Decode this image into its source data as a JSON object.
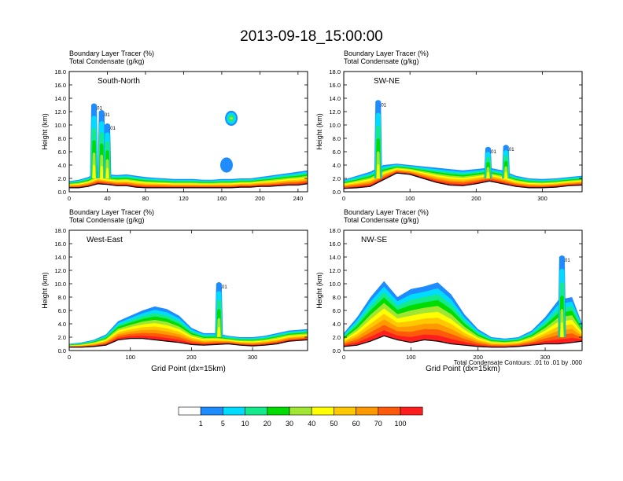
{
  "figure": {
    "title": "2013-09-18_15:00:00",
    "contour_note": "Total Condensate Contours: .01 to .01 by .000",
    "contour_label": ".01"
  },
  "colorbar": {
    "labels": [
      "1",
      "5",
      "10",
      "20",
      "30",
      "40",
      "50",
      "60",
      "70",
      "100"
    ],
    "colors": [
      "#ffffff",
      "#1e8cff",
      "#00dcff",
      "#14ea8c",
      "#00dc00",
      "#a0e632",
      "#ffff00",
      "#ffc800",
      "#ff9900",
      "#ff5a0a",
      "#ff1e1e"
    ]
  },
  "chart_data": [
    {
      "type": "heatmap",
      "panel_label": "South-North",
      "header_line1": "Boundary Layer Tracer   (%)",
      "header_line2": "Total Condensate   (g/kg)",
      "ylabel": "Height (km)",
      "xlabel": "",
      "xlim": [
        0,
        250
      ],
      "ylim": [
        0,
        18
      ],
      "xticks": [
        "0",
        "40",
        "80",
        "120",
        "160",
        "200",
        "240"
      ],
      "yticks": [
        "0.0",
        "2.0",
        "4.0",
        "6.0",
        "8.0",
        "10.0",
        "12.0",
        "14.0",
        "16.0",
        "18.0"
      ],
      "x": [
        0,
        10,
        20,
        30,
        40,
        50,
        60,
        70,
        80,
        90,
        100,
        110,
        120,
        130,
        140,
        150,
        160,
        170,
        180,
        190,
        200,
        210,
        220,
        230,
        240,
        250
      ],
      "terrain_km": [
        0.6,
        0.6,
        0.8,
        1.2,
        1.1,
        0.9,
        0.9,
        0.7,
        0.6,
        0.6,
        0.6,
        0.6,
        0.6,
        0.6,
        0.6,
        0.6,
        0.6,
        0.6,
        0.7,
        0.7,
        0.8,
        0.8,
        0.9,
        1.0,
        1.0,
        1.2
      ],
      "layer_top_km": [
        1.6,
        1.8,
        2.2,
        3.0,
        2.6,
        2.5,
        2.6,
        2.4,
        2.2,
        2.1,
        2.0,
        1.9,
        1.9,
        1.9,
        1.8,
        1.8,
        1.9,
        1.9,
        2.0,
        2.0,
        2.2,
        2.4,
        2.6,
        2.8,
        3.0,
        3.2
      ],
      "plumes": [
        {
          "x": 26,
          "top_km": 13.0
        },
        {
          "x": 34,
          "top_km": 12.0
        },
        {
          "x": 40,
          "top_km": 10.0
        }
      ],
      "cloud_patches": [
        {
          "x": 170,
          "y_km": 11.0,
          "top_value": 30
        },
        {
          "x": 165,
          "y_km": 4.0,
          "top_value": 1
        }
      ]
    },
    {
      "type": "heatmap",
      "panel_label": "SW-NE",
      "header_line1": "Boundary Layer Tracer   (%)",
      "header_line2": "Total Condensate   (g/kg)",
      "ylabel": "Height (km)",
      "xlabel": "",
      "xlim": [
        0,
        360
      ],
      "ylim": [
        0,
        18
      ],
      "xticks": [
        "0",
        "100",
        "200",
        "300"
      ],
      "yticks": [
        "0.0",
        "2.0",
        "4.0",
        "6.0",
        "8.0",
        "10.0",
        "12.0",
        "14.0",
        "16.0",
        "18.0"
      ],
      "x": [
        0,
        20,
        40,
        60,
        80,
        100,
        120,
        140,
        160,
        180,
        200,
        220,
        240,
        260,
        280,
        300,
        320,
        340,
        360
      ],
      "terrain_km": [
        0.5,
        0.6,
        0.8,
        1.8,
        2.8,
        2.6,
        2.0,
        1.4,
        1.0,
        0.9,
        1.2,
        1.6,
        1.2,
        0.8,
        0.6,
        0.6,
        0.7,
        0.9,
        1.0
      ],
      "layer_top_km": [
        1.8,
        2.4,
        3.0,
        4.0,
        4.2,
        4.0,
        3.8,
        3.6,
        3.4,
        3.2,
        3.4,
        3.6,
        3.2,
        2.4,
        2.0,
        1.9,
        2.0,
        2.2,
        2.4
      ],
      "plumes": [
        {
          "x": 52,
          "top_km": 13.5
        },
        {
          "x": 218,
          "top_km": 6.5
        },
        {
          "x": 245,
          "top_km": 6.8
        }
      ],
      "cloud_patches": []
    },
    {
      "type": "heatmap",
      "panel_label": "West-East",
      "header_line1": "Boundary Layer Tracer   (%)",
      "header_line2": "Total Condensate   (g/kg)",
      "ylabel": "Height (km)",
      "xlabel": "Grid Point (dx=15km)",
      "xlim": [
        0,
        390
      ],
      "ylim": [
        0,
        18
      ],
      "xticks": [
        "0",
        "100",
        "200",
        "300"
      ],
      "yticks": [
        "0.0",
        "2.0",
        "4.0",
        "6.0",
        "8.0",
        "10.0",
        "12.0",
        "14.0",
        "16.0",
        "18.0"
      ],
      "x": [
        0,
        20,
        40,
        60,
        80,
        100,
        120,
        140,
        160,
        180,
        200,
        220,
        240,
        260,
        280,
        300,
        320,
        340,
        360,
        390
      ],
      "terrain_km": [
        0.5,
        0.5,
        0.6,
        0.8,
        1.6,
        1.8,
        1.8,
        1.6,
        1.4,
        1.2,
        0.9,
        0.8,
        0.9,
        1.0,
        0.8,
        0.7,
        0.8,
        1.0,
        1.4,
        1.6
      ],
      "layer_top_km": [
        1.0,
        1.2,
        1.6,
        2.4,
        4.4,
        5.2,
        6.0,
        6.6,
        6.2,
        5.2,
        3.4,
        2.6,
        2.6,
        2.2,
        2.0,
        2.0,
        2.2,
        2.6,
        3.0,
        3.2
      ],
      "plumes": [
        {
          "x": 245,
          "top_km": 10.0
        }
      ],
      "cloud_patches": []
    },
    {
      "type": "heatmap",
      "panel_label": "NW-SE",
      "header_line1": "Boundary Layer Tracer   (%)",
      "header_line2": "Total Condensate   (g/kg)",
      "ylabel": "Height (km)",
      "xlabel": "Grid Point (dx=15km)",
      "xlim": [
        0,
        355
      ],
      "ylim": [
        0,
        18
      ],
      "xticks": [
        "0",
        "100",
        "200",
        "300"
      ],
      "yticks": [
        "0.0",
        "2.0",
        "4.0",
        "6.0",
        "8.0",
        "10.0",
        "12.0",
        "14.0",
        "16.0",
        "18.0"
      ],
      "x": [
        0,
        20,
        40,
        60,
        80,
        100,
        120,
        140,
        160,
        180,
        200,
        220,
        240,
        260,
        280,
        300,
        320,
        340,
        355
      ],
      "terrain_km": [
        0.6,
        0.8,
        1.4,
        2.2,
        1.6,
        1.2,
        1.6,
        1.4,
        1.0,
        0.8,
        0.6,
        0.5,
        0.5,
        0.6,
        0.8,
        1.0,
        1.0,
        1.2,
        1.4
      ],
      "layer_top_km": [
        2.6,
        5.0,
        8.0,
        10.4,
        8.0,
        9.2,
        9.6,
        10.2,
        8.4,
        5.4,
        3.2,
        2.0,
        1.8,
        2.0,
        3.0,
        5.0,
        7.6,
        8.0,
        4.0
      ],
      "plumes": [
        {
          "x": 325,
          "top_km": 14.0
        }
      ],
      "cloud_patches": []
    }
  ]
}
